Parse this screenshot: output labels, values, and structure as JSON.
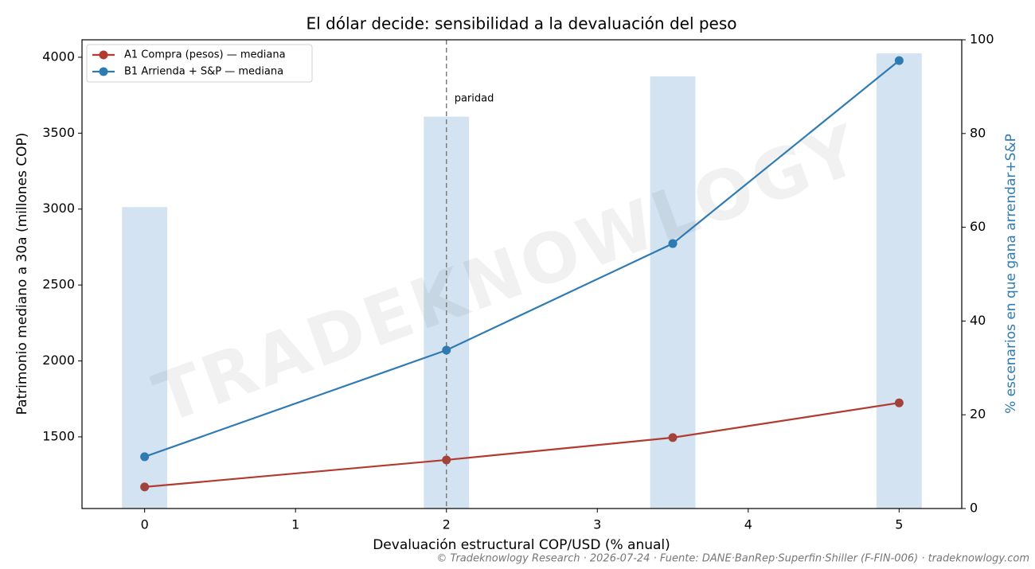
{
  "chart_data": {
    "type": "line",
    "title": "El dólar decide: sensibilidad a la devaluación del peso",
    "xlabel": "Devaluación estructural COP/USD (% anual)",
    "ylabel": "Patrimonio mediano a 30a (millones COP)",
    "y2label": "% escenarios en que gana arrendar+S&P",
    "x": [
      0,
      2,
      3.5,
      5
    ],
    "series": [
      {
        "name": "A1 Compra (pesos) — mediana",
        "color": "#b23a2e",
        "values": [
          1170,
          1348,
          1495,
          1724
        ]
      },
      {
        "name": "B1 Arrienda + S&P — mediana",
        "color": "#2e7bb4",
        "values": [
          1369,
          2071,
          2773,
          3978
        ]
      }
    ],
    "bars": {
      "axis": "y2",
      "color": "#d3e3f1",
      "width": 0.3,
      "values": [
        64.3,
        83.6,
        92.2,
        97.1
      ]
    },
    "xlim": [
      -0.415,
      5.415
    ],
    "xticks": [
      0,
      1,
      2,
      3,
      4,
      5
    ],
    "ylim": [
      1028,
      4115
    ],
    "yticks": [
      1500,
      2000,
      2500,
      3000,
      3500,
      4000
    ],
    "y2lim": [
      0,
      100
    ],
    "y2ticks": [
      0,
      20,
      40,
      60,
      80,
      100
    ],
    "vline": {
      "x": 2,
      "label": "paridad"
    },
    "legend": "upper left",
    "watermark": "TRADEKNOWLOGY",
    "footer": "© Tradeknowlogy Research   ·   2026-07-24   ·   Fuente: DANE·BanRep·Superfin·Shiller (F-FIN-006)   ·   tradeknowlogy.com"
  }
}
